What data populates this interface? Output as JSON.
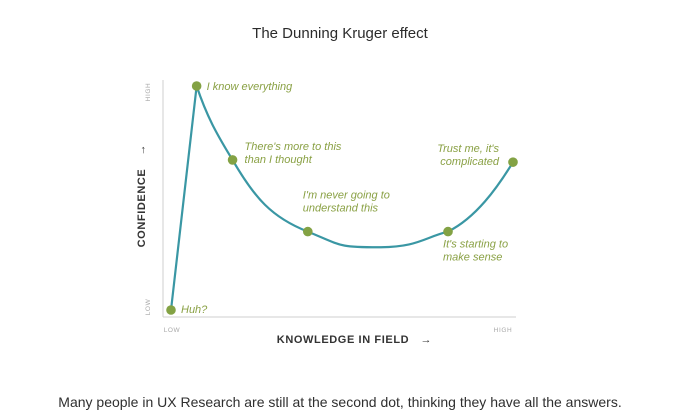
{
  "figure": {
    "title": "The Dunning Kruger effect",
    "caption": "Many people in UX Research are still at the second dot, thinking they have all the answers."
  },
  "chart_data": {
    "type": "line",
    "title": "The Dunning Kruger effect",
    "xlabel": "KNOWLEDGE IN FIELD",
    "ylabel": "CONFIDENCE",
    "x_ticks": [
      "LOW",
      "HIGH"
    ],
    "y_ticks": [
      "LOW",
      "HIGH"
    ],
    "xlim": [
      0,
      100
    ],
    "ylim": [
      0,
      100
    ],
    "grid": false,
    "line_color": "#3a97a4",
    "marker_color": "#83a244",
    "label_color": "#8aa145",
    "points": [
      {
        "x": 0,
        "y": 0,
        "label": "Huh?"
      },
      {
        "x": 7.5,
        "y": 100,
        "label": "I know everything"
      },
      {
        "x": 18,
        "y": 67,
        "label": "There's more to this\nthan I thought"
      },
      {
        "x": 40,
        "y": 35,
        "label": "I'm never going to\nunderstand this"
      },
      {
        "x": 81,
        "y": 35,
        "label": "It's starting to\nmake sense"
      },
      {
        "x": 100,
        "y": 66,
        "label": "Trust me, it's\ncomplicated"
      }
    ]
  }
}
